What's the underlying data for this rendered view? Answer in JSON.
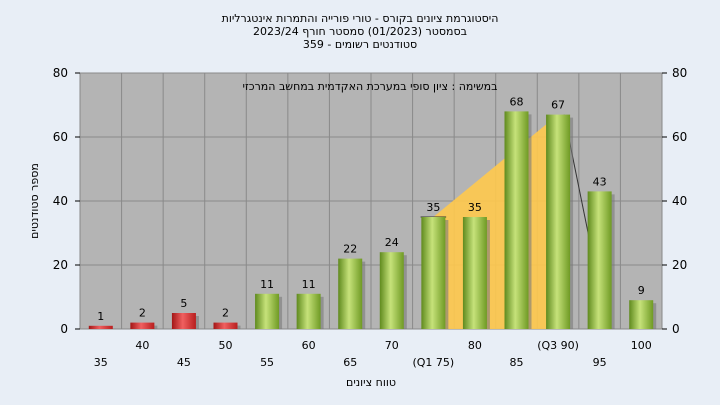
{
  "chart_data": {
    "type": "bar",
    "title_lines": [
      "היסטוגרמת ציונים בקורס - טורי פורייה והתמרות אינטגרליות",
      "בסמסטר  (01/2023)  סמסטר חורף 2023/24",
      "סטודנטים רשומים - 359"
    ],
    "annotation": "במשימה : ציון סופי במערכת האקדמית במחשב המרכזי",
    "xlabel": "טווח ציונים",
    "ylabel": "מספר סטודנטים",
    "ylim": [
      0,
      80
    ],
    "yticks": [
      0,
      20,
      40,
      60,
      80
    ],
    "grid": true,
    "categories": [
      "35",
      "40",
      "45",
      "50",
      "55",
      "60",
      "65",
      "70",
      "75",
      "80",
      "85",
      "90",
      "95",
      "100"
    ],
    "category_labels": [
      "35",
      "40",
      "45",
      "50",
      "55",
      "60",
      "65",
      "70",
      "(Q1 75)",
      "80",
      "85",
      "(Q3 90)",
      "95",
      "100"
    ],
    "values": [
      1,
      2,
      5,
      2,
      11,
      11,
      22,
      24,
      35,
      35,
      68,
      67,
      43,
      9
    ],
    "failing_categories": [
      "35",
      "40",
      "45",
      "50"
    ],
    "colors": {
      "fail": "#d62a2a",
      "pass": "#8db83a",
      "plot_bg": "#b4b4b4",
      "page_bg": "#e8eef6",
      "quartile_area": "#ffc94d"
    }
  }
}
